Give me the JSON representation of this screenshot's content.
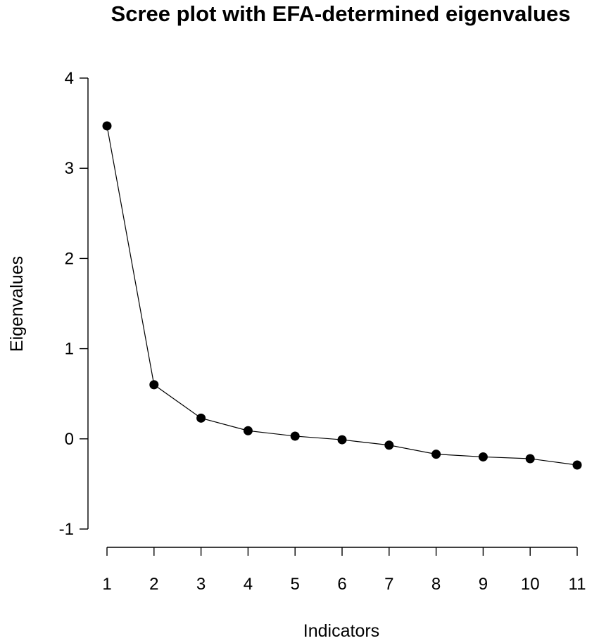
{
  "chart_data": {
    "type": "line",
    "title": "Scree plot with EFA-determined eigenvalues",
    "xlabel": "Indicators",
    "ylabel": "Eigenvalues",
    "x": [
      1,
      2,
      3,
      4,
      5,
      6,
      7,
      8,
      9,
      10,
      11
    ],
    "series": [
      {
        "values": [
          3.47,
          0.6,
          0.23,
          0.09,
          0.03,
          -0.01,
          -0.07,
          -0.17,
          -0.2,
          -0.22,
          -0.29
        ]
      }
    ],
    "xlim": [
      1,
      11
    ],
    "ylim": [
      -1,
      4
    ],
    "xticks": [
      "1",
      "2",
      "3",
      "4",
      "5",
      "6",
      "7",
      "8",
      "9",
      "10",
      "11"
    ],
    "yticks": [
      "-1",
      "0",
      "1",
      "2",
      "3",
      "4"
    ],
    "grid": false,
    "marker": "filled-circle",
    "line_color": "#000000"
  }
}
